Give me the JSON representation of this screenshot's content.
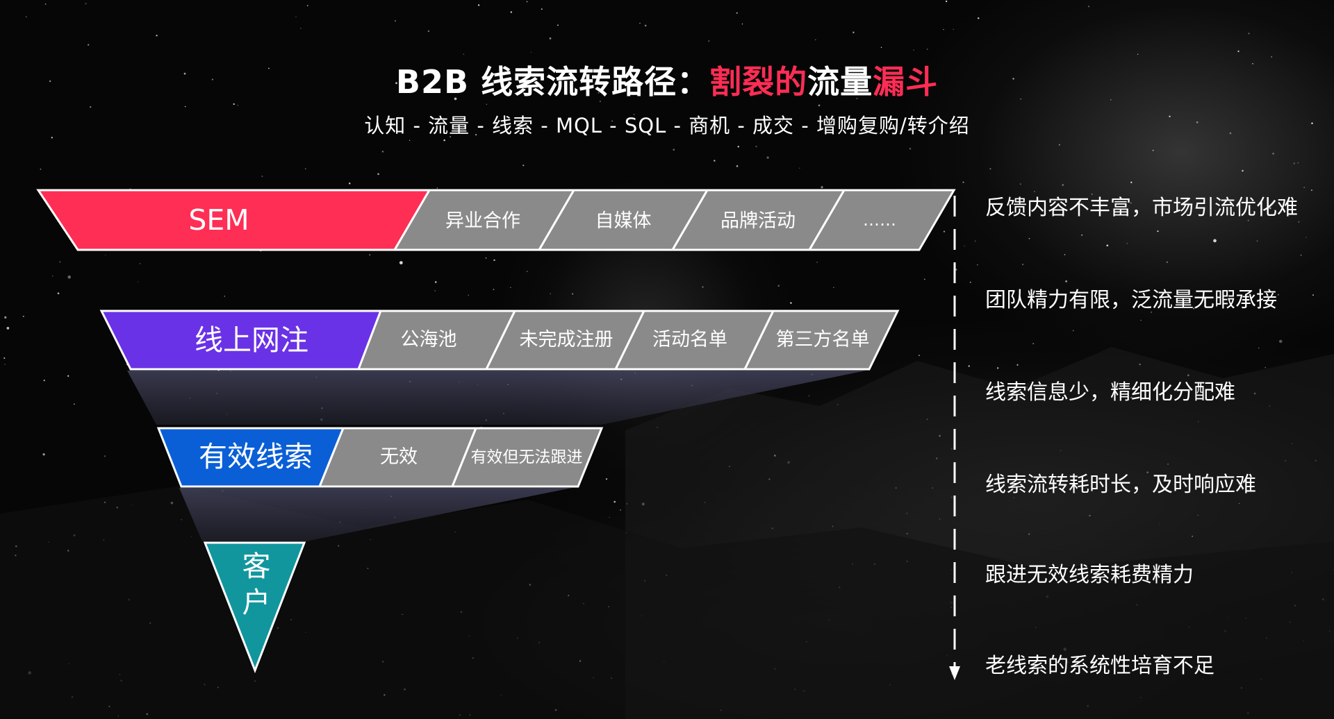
{
  "title": {
    "prefix": "B2B 线索流转路径：",
    "highlight_1": "割裂的",
    "middle": "流量",
    "highlight_2": "漏斗"
  },
  "subtitle": "认知 - 流量 - 线索  -  MQL  -  SQL - 商机 - 成交 - 增购复购/转介绍",
  "colors": {
    "sem": "#ff2e54",
    "online_registration": "#6a32e6",
    "valid_leads": "#0a5fd6",
    "customer": "#12969e",
    "gray_segment": "#8a8a8a",
    "highlight_text": "#ff2d55"
  },
  "funnel": {
    "row1": {
      "label": "SEM",
      "segments": [
        "异业合作",
        "自媒体",
        "品牌活动",
        "……"
      ]
    },
    "row2": {
      "label": "线上网注",
      "segments": [
        "公海池",
        "未完成注册",
        "活动名单",
        "第三方名单"
      ]
    },
    "row3": {
      "label": "有效线索",
      "segments": [
        "无效",
        "有效但无法跟进"
      ]
    },
    "row4": {
      "label_line1": "客",
      "label_line2": "户"
    }
  },
  "issues": [
    "反馈内容不丰富，市场引流优化难",
    "团队精力有限，泛流量无暇承接",
    "线索信息少，精细化分配难",
    "线索流转耗时长，及时响应难",
    "跟进无效线索耗费精力",
    "老线索的系统性培育不足"
  ]
}
